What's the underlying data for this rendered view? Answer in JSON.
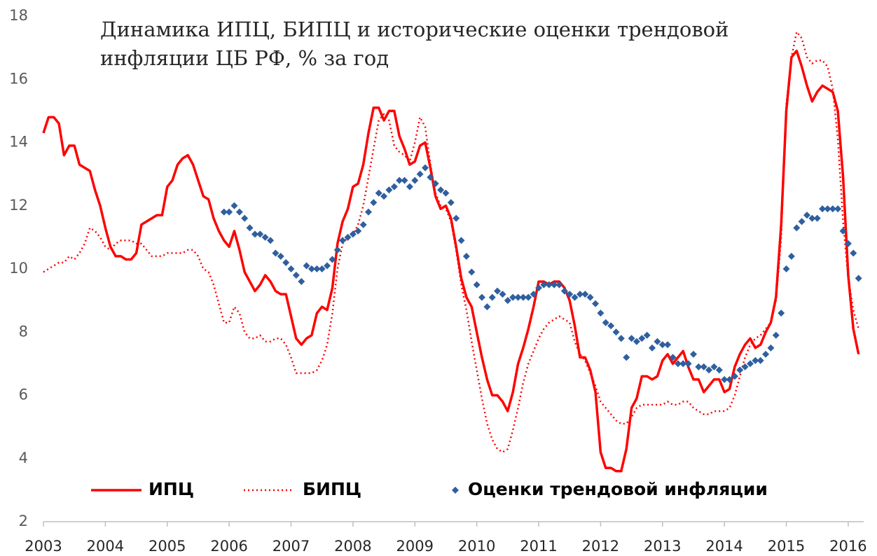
{
  "chart_data": {
    "type": "line",
    "title": [
      "Динамика ИПЦ, БИПЦ и исторические оценки трендовой",
      "инфляции ЦБ РФ, % за год"
    ],
    "x": [
      2003,
      2003.083,
      2003.167,
      2003.25,
      2003.333,
      2003.417,
      2003.5,
      2003.583,
      2003.667,
      2003.75,
      2003.833,
      2003.917,
      2004,
      2004.083,
      2004.167,
      2004.25,
      2004.333,
      2004.417,
      2004.5,
      2004.583,
      2004.667,
      2004.75,
      2004.833,
      2004.917,
      2005,
      2005.083,
      2005.167,
      2005.25,
      2005.333,
      2005.417,
      2005.5,
      2005.583,
      2005.667,
      2005.75,
      2005.833,
      2005.917,
      2006,
      2006.083,
      2006.167,
      2006.25,
      2006.333,
      2006.417,
      2006.5,
      2006.583,
      2006.667,
      2006.75,
      2006.833,
      2006.917,
      2007,
      2007.083,
      2007.167,
      2007.25,
      2007.333,
      2007.417,
      2007.5,
      2007.583,
      2007.667,
      2007.75,
      2007.833,
      2007.917,
      2008,
      2008.083,
      2008.167,
      2008.25,
      2008.333,
      2008.417,
      2008.5,
      2008.583,
      2008.667,
      2008.75,
      2008.833,
      2008.917,
      2009,
      2009.083,
      2009.167,
      2009.25,
      2009.333,
      2009.417,
      2009.5,
      2009.583,
      2009.667,
      2009.75,
      2009.833,
      2009.917,
      2010,
      2010.083,
      2010.167,
      2010.25,
      2010.333,
      2010.417,
      2010.5,
      2010.583,
      2010.667,
      2010.75,
      2010.833,
      2010.917,
      2011,
      2011.083,
      2011.167,
      2011.25,
      2011.333,
      2011.417,
      2011.5,
      2011.583,
      2011.667,
      2011.75,
      2011.833,
      2011.917,
      2012,
      2012.083,
      2012.167,
      2012.25,
      2012.333,
      2012.417,
      2012.5,
      2012.583,
      2012.667,
      2012.75,
      2012.833,
      2012.917,
      2013,
      2013.083,
      2013.167,
      2013.25,
      2013.333,
      2013.417,
      2013.5,
      2013.583,
      2013.667,
      2013.75,
      2013.833,
      2013.917,
      2014,
      2014.083,
      2014.167,
      2014.25,
      2014.333,
      2014.417,
      2014.5,
      2014.583,
      2014.667,
      2014.75,
      2014.833,
      2014.917,
      2015,
      2015.083,
      2015.167,
      2015.25,
      2015.333,
      2015.417,
      2015.5,
      2015.583,
      2015.667,
      2015.75,
      2015.833,
      2015.917,
      2016,
      2016.083,
      2016.167
    ],
    "series": [
      {
        "name": "ИПЦ",
        "color": "#ff0000",
        "style": "solid",
        "values": [
          14.3,
          14.8,
          14.8,
          14.6,
          13.6,
          13.9,
          13.9,
          13.3,
          13.2,
          13.1,
          12.5,
          12.0,
          11.3,
          10.7,
          10.4,
          10.4,
          10.3,
          10.3,
          10.5,
          11.4,
          11.5,
          11.6,
          11.7,
          11.7,
          12.6,
          12.8,
          13.3,
          13.5,
          13.6,
          13.3,
          12.8,
          12.3,
          12.2,
          11.6,
          11.2,
          10.9,
          10.7,
          11.2,
          10.6,
          9.9,
          9.6,
          9.3,
          9.5,
          9.8,
          9.6,
          9.3,
          9.2,
          9.2,
          8.5,
          7.8,
          7.6,
          7.8,
          7.9,
          8.6,
          8.8,
          8.7,
          9.4,
          10.8,
          11.5,
          11.9,
          12.6,
          12.7,
          13.3,
          14.3,
          15.1,
          15.1,
          14.7,
          15.0,
          15.0,
          14.2,
          13.8,
          13.3,
          13.4,
          13.9,
          14.0,
          13.2,
          12.3,
          11.9,
          12.0,
          11.6,
          10.7,
          9.7,
          9.1,
          8.8,
          8.0,
          7.2,
          6.5,
          6.0,
          6.0,
          5.8,
          5.5,
          6.1,
          7.0,
          7.5,
          8.1,
          8.8,
          9.6,
          9.6,
          9.5,
          9.6,
          9.6,
          9.4,
          9.0,
          8.2,
          7.2,
          7.2,
          6.8,
          6.1,
          4.2,
          3.7,
          3.7,
          3.6,
          3.6,
          4.3,
          5.6,
          5.9,
          6.6,
          6.6,
          6.5,
          6.6,
          7.1,
          7.3,
          7.0,
          7.2,
          7.4,
          6.9,
          6.5,
          6.5,
          6.1,
          6.3,
          6.5,
          6.5,
          6.1,
          6.2,
          6.9,
          7.3,
          7.6,
          7.8,
          7.5,
          7.6,
          8.0,
          8.3,
          9.1,
          11.4,
          15.0,
          16.7,
          16.9,
          16.4,
          15.8,
          15.3,
          15.6,
          15.8,
          15.7,
          15.6,
          15.0,
          12.9,
          9.8,
          8.1,
          7.3
        ]
      },
      {
        "name": "БИПЦ",
        "color": "#ff0000",
        "style": "dotted",
        "values": [
          9.9,
          10.0,
          10.1,
          10.2,
          10.2,
          10.4,
          10.3,
          10.5,
          10.8,
          11.3,
          11.2,
          11.0,
          10.7,
          10.6,
          10.8,
          10.9,
          10.9,
          10.9,
          10.8,
          10.8,
          10.6,
          10.4,
          10.4,
          10.4,
          10.5,
          10.5,
          10.5,
          10.5,
          10.6,
          10.6,
          10.4,
          10.0,
          9.9,
          9.5,
          8.9,
          8.3,
          8.3,
          8.8,
          8.6,
          8.0,
          7.8,
          7.8,
          7.9,
          7.7,
          7.7,
          7.8,
          7.8,
          7.6,
          7.2,
          6.7,
          6.7,
          6.7,
          6.7,
          6.8,
          7.1,
          7.6,
          8.6,
          10.0,
          10.8,
          11.0,
          11.1,
          11.4,
          12.0,
          12.9,
          13.8,
          14.7,
          14.9,
          14.7,
          13.9,
          13.7,
          13.6,
          13.4,
          14.0,
          14.8,
          14.5,
          13.3,
          12.4,
          12.0,
          11.9,
          11.5,
          10.6,
          9.5,
          8.7,
          7.7,
          6.8,
          5.9,
          5.1,
          4.6,
          4.3,
          4.2,
          4.3,
          4.9,
          5.6,
          6.4,
          7.0,
          7.4,
          7.8,
          8.1,
          8.3,
          8.4,
          8.5,
          8.4,
          8.3,
          7.7,
          7.3,
          7.1,
          6.7,
          6.3,
          5.8,
          5.6,
          5.4,
          5.2,
          5.1,
          5.1,
          5.3,
          5.6,
          5.7,
          5.7,
          5.7,
          5.7,
          5.7,
          5.8,
          5.7,
          5.7,
          5.8,
          5.8,
          5.6,
          5.5,
          5.4,
          5.4,
          5.5,
          5.5,
          5.5,
          5.6,
          6.0,
          6.6,
          7.2,
          7.6,
          7.8,
          7.9,
          8.1,
          8.3,
          9.0,
          11.0,
          15.2,
          16.7,
          17.5,
          17.3,
          16.7,
          16.5,
          16.6,
          16.6,
          16.4,
          15.7,
          14.1,
          11.5,
          9.7,
          8.7,
          8.1
        ]
      },
      {
        "name": "Оценки трендовой инфляции",
        "color": "#2f5f9e",
        "style": "markers",
        "values": [
          null,
          null,
          null,
          null,
          null,
          null,
          null,
          null,
          null,
          null,
          null,
          null,
          null,
          null,
          null,
          null,
          null,
          null,
          null,
          null,
          null,
          null,
          null,
          null,
          null,
          null,
          null,
          null,
          null,
          null,
          null,
          null,
          null,
          null,
          null,
          11.8,
          11.8,
          12.0,
          11.8,
          11.6,
          11.3,
          11.1,
          11.1,
          11.0,
          10.9,
          10.5,
          10.4,
          10.2,
          10.0,
          9.8,
          9.6,
          10.1,
          10.0,
          10.0,
          10.0,
          10.1,
          10.3,
          10.6,
          10.9,
          11.0,
          11.1,
          11.2,
          11.4,
          11.8,
          12.1,
          12.4,
          12.3,
          12.5,
          12.6,
          12.8,
          12.8,
          12.6,
          12.8,
          13.0,
          13.2,
          12.9,
          12.7,
          12.5,
          12.4,
          12.1,
          11.6,
          10.9,
          10.4,
          9.9,
          9.5,
          9.1,
          8.8,
          9.1,
          9.3,
          9.2,
          9.0,
          9.1,
          9.1,
          9.1,
          9.1,
          9.2,
          9.4,
          9.5,
          9.5,
          9.5,
          9.5,
          9.3,
          9.2,
          9.1,
          9.2,
          9.2,
          9.1,
          8.9,
          8.6,
          8.3,
          8.2,
          8.0,
          7.8,
          7.2,
          7.8,
          7.7,
          7.8,
          7.9,
          7.5,
          7.7,
          7.6,
          7.6,
          7.2,
          7.0,
          7.0,
          7.0,
          7.3,
          6.9,
          6.9,
          6.8,
          6.9,
          6.8,
          6.5,
          6.5,
          6.6,
          6.8,
          6.9,
          7.0,
          7.1,
          7.1,
          7.3,
          7.5,
          7.9,
          8.6,
          10.0,
          10.4,
          11.3,
          11.5,
          11.7,
          11.6,
          11.6,
          11.9,
          11.9,
          11.9,
          11.9,
          11.2,
          10.8,
          10.5,
          9.7
        ]
      }
    ],
    "xlim": [
      2003,
      2016.25
    ],
    "xticks": [
      2003,
      2004,
      2005,
      2006,
      2007,
      2008,
      2009,
      2010,
      2011,
      2012,
      2013,
      2014,
      2015,
      2016
    ],
    "ylim": [
      2,
      18
    ],
    "yticks": [
      2,
      4,
      6,
      8,
      10,
      12,
      14,
      16,
      18
    ]
  }
}
